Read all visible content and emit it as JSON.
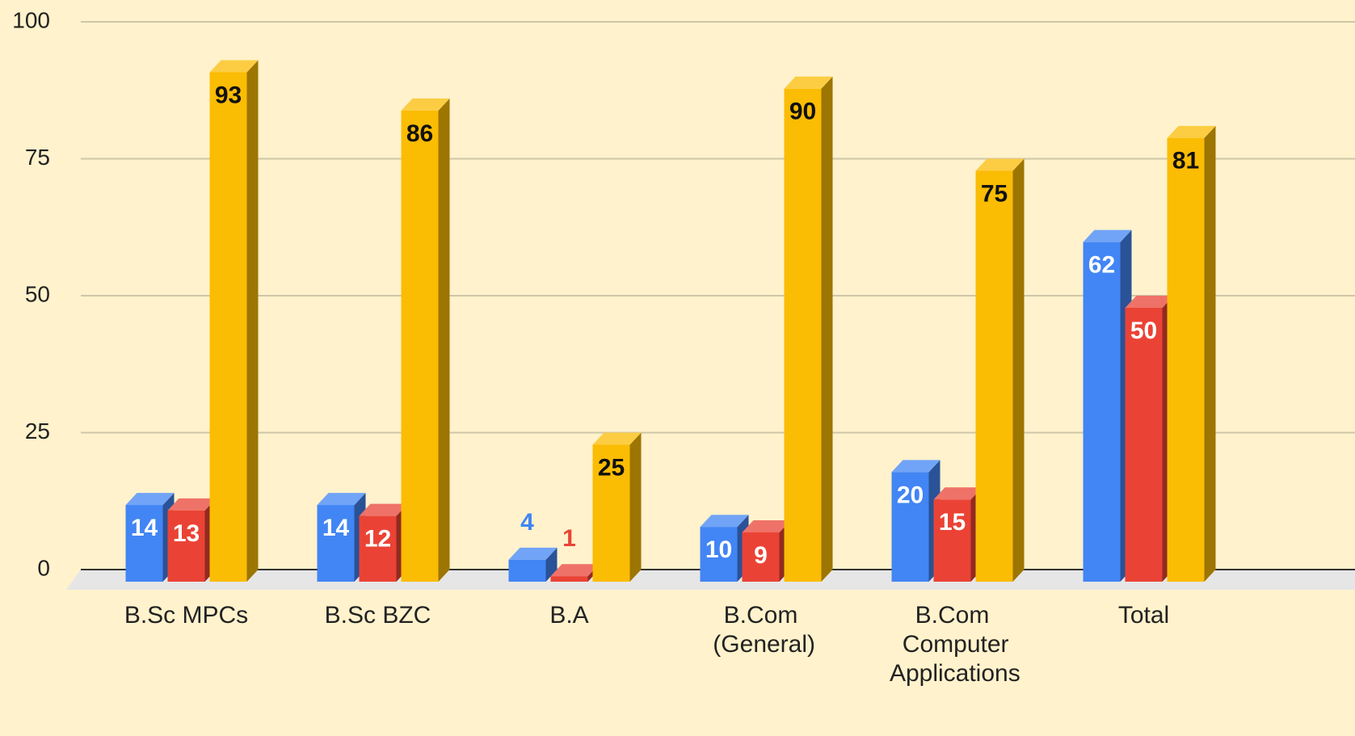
{
  "chart_data": {
    "type": "bar3d",
    "categories": [
      "B.Sc MPCs",
      "B.Sc BZC",
      "B.A",
      "B.Com (General)",
      "B.Com Computer Applications",
      "Total"
    ],
    "series": [
      {
        "color": "#4285f4",
        "values": [
          14,
          14,
          4,
          10,
          20,
          62
        ]
      },
      {
        "color": "#ea4335",
        "values": [
          13,
          12,
          1,
          9,
          15,
          50
        ]
      },
      {
        "color": "#fbbc04",
        "values": [
          93,
          86,
          25,
          90,
          75,
          81
        ]
      }
    ],
    "ylim": [
      0,
      100
    ],
    "yticks": [
      0,
      25,
      50,
      75,
      100
    ],
    "grid": true
  }
}
